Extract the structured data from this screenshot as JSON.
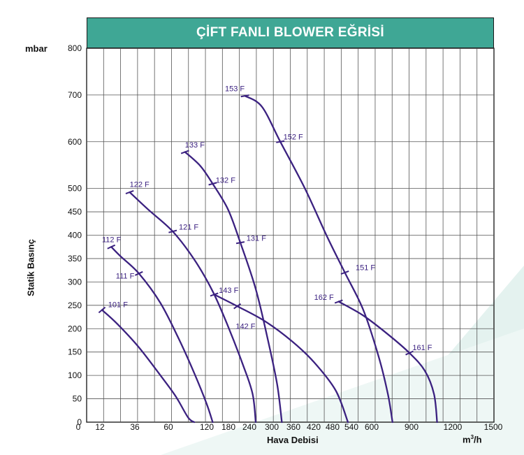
{
  "chart_data": {
    "type": "line",
    "title": "ÇİFT FANLI BLOWER EĞRİSİ",
    "ylabel_unit": "mbar",
    "ylabel": "Statik Basınç",
    "xlabel": "Hava Debisi",
    "xunit_base": "m",
    "xunit_sup": "3",
    "xunit_tail": "/h",
    "ylim": [
      0,
      800
    ],
    "yticks": [
      800,
      700,
      600,
      500,
      450,
      400,
      350,
      300,
      250,
      200,
      150,
      100,
      50,
      0
    ],
    "xticks": [
      "12",
      "36",
      "60",
      "120",
      "180",
      "240",
      "300",
      "360",
      "420",
      "480",
      "540",
      "600",
      "900",
      "1200",
      "1500"
    ],
    "grid": true,
    "curve_color": "#3b2180",
    "series": [
      {
        "points": [
          [
            10,
            240
          ],
          [
            20,
            210
          ],
          [
            34,
            160
          ],
          [
            48,
            100
          ],
          [
            58,
            55
          ],
          [
            66,
            10
          ],
          [
            70,
            0
          ]
        ],
        "labels": [
          {
            "text": "101 F",
            "x": 14,
            "y": 246
          }
        ]
      },
      {
        "points": [
          [
            16,
            375
          ],
          [
            22,
            355
          ],
          [
            34,
            318
          ],
          [
            48,
            255
          ],
          [
            60,
            178
          ],
          [
            70,
            105
          ],
          [
            78,
            40
          ],
          [
            82,
            0
          ]
        ],
        "labels": [
          {
            "text": "112 F",
            "x": 10,
            "y": 385
          },
          {
            "text": "111 F",
            "x": 19,
            "y": 307
          }
        ]
      },
      {
        "points": [
          [
            28,
            492
          ],
          [
            40,
            455
          ],
          [
            56,
            408
          ],
          [
            70,
            348
          ],
          [
            82,
            280
          ],
          [
            92,
            205
          ],
          [
            102,
            120
          ],
          [
            108,
            60
          ],
          [
            110,
            0
          ]
        ],
        "labels": [
          {
            "text": "122 F",
            "x": 28,
            "y": 503
          },
          {
            "text": "121 F",
            "x": 60,
            "y": 412
          }
        ]
      },
      {
        "points": [
          [
            64,
            578
          ],
          [
            74,
            548
          ],
          [
            82,
            510
          ],
          [
            92,
            455
          ],
          [
            100,
            384
          ],
          [
            110,
            285
          ],
          [
            118,
            175
          ],
          [
            124,
            80
          ],
          [
            127,
            0
          ]
        ],
        "labels": [
          {
            "text": "133 F",
            "x": 64,
            "y": 588
          },
          {
            "text": "132 F",
            "x": 84,
            "y": 512
          },
          {
            "text": "131 F",
            "x": 104,
            "y": 388
          }
        ]
      },
      {
        "points": [
          [
            83,
            273
          ],
          [
            98,
            248
          ],
          [
            116,
            216
          ],
          [
            134,
            172
          ],
          [
            148,
            128
          ],
          [
            162,
            68
          ],
          [
            170,
            0
          ]
        ],
        "labels": [
          {
            "text": "143 F",
            "x": 86,
            "y": 277
          },
          {
            "text": "142 F",
            "x": 97,
            "y": 200
          }
        ]
      },
      {
        "points": [
          [
            103,
            698
          ],
          [
            114,
            675
          ],
          [
            126,
            600
          ],
          [
            142,
            500
          ],
          [
            156,
            400
          ],
          [
            168,
            320
          ],
          [
            180,
            240
          ],
          [
            190,
            140
          ],
          [
            196,
            60
          ],
          [
            199,
            0
          ]
        ],
        "labels": [
          {
            "text": "153 F",
            "x": 90,
            "y": 708
          },
          {
            "text": "152 F",
            "x": 128,
            "y": 605
          },
          {
            "text": "151 F",
            "x": 175,
            "y": 325
          }
        ]
      },
      {
        "points": [
          [
            164,
            258
          ],
          [
            180,
            228
          ],
          [
            196,
            188
          ],
          [
            210,
            148
          ],
          [
            220,
            110
          ],
          [
            226,
            60
          ],
          [
            228,
            0
          ]
        ],
        "labels": [
          {
            "text": "162 F",
            "x": 148,
            "y": 262
          },
          {
            "text": "161 F",
            "x": 212,
            "y": 154
          }
        ]
      }
    ],
    "markers": [
      {
        "point": [
          10,
          240
        ],
        "angle": 40
      },
      {
        "point": [
          16,
          375
        ],
        "angle": 25
      },
      {
        "point": [
          34,
          318
        ],
        "angle": 25
      },
      {
        "point": [
          28,
          492
        ],
        "angle": 20
      },
      {
        "point": [
          56,
          408
        ],
        "angle": 15
      },
      {
        "point": [
          64,
          578
        ],
        "angle": 20
      },
      {
        "point": [
          82,
          510
        ],
        "angle": 15
      },
      {
        "point": [
          100,
          384
        ],
        "angle": 10
      },
      {
        "point": [
          83,
          273
        ],
        "angle": 20
      },
      {
        "point": [
          98,
          248
        ],
        "angle": 35
      },
      {
        "point": [
          103,
          698
        ],
        "angle": 10
      },
      {
        "point": [
          126,
          600
        ],
        "angle": 10
      },
      {
        "point": [
          168,
          320
        ],
        "angle": 20
      },
      {
        "point": [
          164,
          258
        ],
        "angle": 20
      },
      {
        "point": [
          210,
          148
        ],
        "angle": 25
      }
    ]
  }
}
